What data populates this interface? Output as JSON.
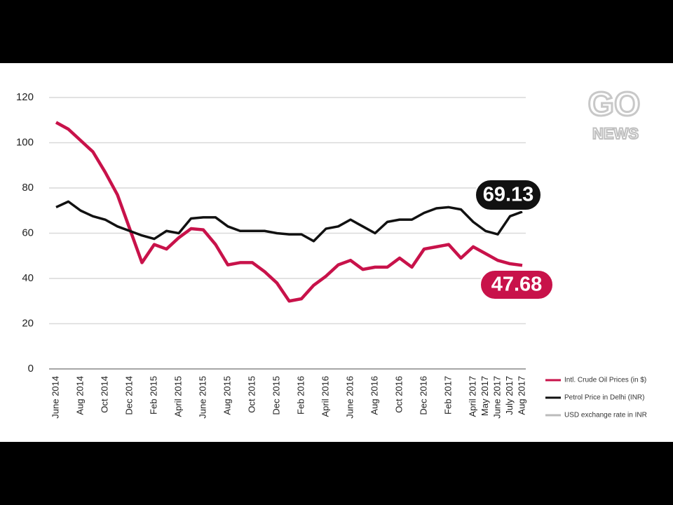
{
  "chart_data": {
    "type": "line",
    "categories": [
      "June 2014",
      null,
      "Aug 2014",
      null,
      "Oct 2014",
      null,
      "Dec 2014",
      null,
      "Feb 2015",
      null,
      "April 2015",
      null,
      "June 2015",
      null,
      "Aug 2015",
      null,
      "Oct 2015",
      null,
      "Dec 2015",
      null,
      "Feb 2016",
      null,
      "April 2016",
      null,
      "June 2016",
      null,
      "Aug 2016",
      null,
      "Oct 2016",
      null,
      "Dec 2016",
      null,
      "Feb 2017",
      null,
      "April 2017",
      "May 2017",
      "June 2017",
      "July 2017",
      "Aug 2017"
    ],
    "series": [
      {
        "name": "Intl. Crude Oil Prices (in $)",
        "color": "#c8124a",
        "values": [
          109,
          106,
          101,
          96,
          87,
          77,
          62,
          47,
          55,
          53,
          58,
          62,
          61.5,
          55,
          46,
          47,
          47,
          43,
          38,
          30,
          31,
          37,
          41,
          46,
          48,
          44,
          45,
          45,
          49,
          45,
          53,
          54,
          55,
          49,
          54,
          51,
          48,
          46.5,
          45.8
        ]
      },
      {
        "name": "Petrol Price in Delhi (INR)",
        "color": "#111111",
        "values": [
          71.5,
          74,
          70,
          67.5,
          66,
          63,
          61,
          59,
          57.5,
          61,
          60,
          66.5,
          67,
          67,
          63,
          61,
          61,
          61,
          60,
          59.5,
          59.5,
          56.5,
          62,
          63,
          66,
          63,
          60,
          65,
          66,
          66,
          69,
          71,
          71.5,
          70.5,
          65,
          61,
          59.5,
          67.5,
          69.5
        ]
      }
    ],
    "legend_only": [
      {
        "name": "USD exchange rate in INR",
        "color": "#bbbbbb"
      }
    ],
    "ylim": [
      0,
      120
    ],
    "yticks": [
      0,
      20,
      40,
      60,
      80,
      100,
      120
    ],
    "grid": true,
    "annotations": [
      {
        "text": "69.13",
        "color": "#111111"
      },
      {
        "text": "47.68",
        "color": "#c8124a"
      }
    ]
  },
  "logo": {
    "top": "GO",
    "bottom": "NEWS"
  }
}
